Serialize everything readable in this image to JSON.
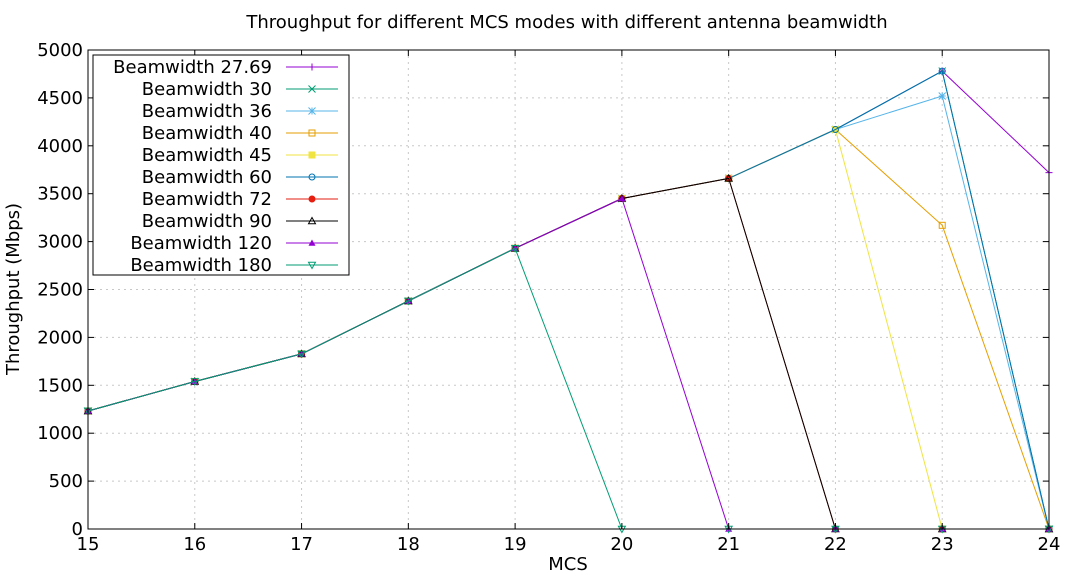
{
  "chart_data": {
    "type": "line",
    "title": "Throughput for different MCS modes with different antenna beamwidth",
    "xlabel": "MCS",
    "ylabel": "Throughput (Mbps)",
    "xlim": [
      15,
      24
    ],
    "ylim": [
      0,
      5000
    ],
    "xticks": [
      15,
      16,
      17,
      18,
      19,
      20,
      21,
      22,
      23,
      24
    ],
    "yticks": [
      0,
      500,
      1000,
      1500,
      2000,
      2500,
      3000,
      3500,
      4000,
      4500,
      5000
    ],
    "grid": true,
    "legend_position": "top-left",
    "x": [
      15,
      16,
      17,
      18,
      19,
      20,
      21,
      22,
      23,
      24
    ],
    "series": [
      {
        "name": "Beamwidth 27.69",
        "color": "#9400d3",
        "marker": "plus",
        "values": [
          1232,
          1540,
          1828,
          2380,
          2930,
          3450,
          3660,
          4170,
          4780,
          3720
        ]
      },
      {
        "name": "Beamwidth 30",
        "color": "#009e73",
        "marker": "cross",
        "values": [
          1232,
          1540,
          1828,
          2380,
          2930,
          3450,
          3660,
          4170,
          4780,
          0
        ]
      },
      {
        "name": "Beamwidth 36",
        "color": "#56b4e9",
        "marker": "star",
        "values": [
          1232,
          1540,
          1828,
          2380,
          2930,
          3450,
          3660,
          4170,
          4520,
          0
        ]
      },
      {
        "name": "Beamwidth 40",
        "color": "#e69f00",
        "marker": "square-open",
        "values": [
          1232,
          1540,
          1828,
          2380,
          2930,
          3450,
          3660,
          4170,
          3170,
          0
        ]
      },
      {
        "name": "Beamwidth 45",
        "color": "#f0e442",
        "marker": "square-filled",
        "values": [
          1232,
          1540,
          1828,
          2380,
          2930,
          3450,
          3660,
          4170,
          0,
          0
        ]
      },
      {
        "name": "Beamwidth 60",
        "color": "#0072b2",
        "marker": "circle-open",
        "values": [
          1232,
          1540,
          1828,
          2380,
          2930,
          3450,
          3660,
          4170,
          4780,
          0
        ]
      },
      {
        "name": "Beamwidth 72",
        "color": "#e51e10",
        "marker": "circle-filled",
        "values": [
          1232,
          1540,
          1828,
          2380,
          2930,
          3450,
          3660,
          0,
          0,
          0
        ]
      },
      {
        "name": "Beamwidth 90",
        "color": "#000000",
        "marker": "triangle-open",
        "values": [
          1232,
          1540,
          1828,
          2380,
          2930,
          3450,
          3660,
          0,
          0,
          0
        ]
      },
      {
        "name": "Beamwidth 120",
        "color": "#9400d3",
        "marker": "triangle-filled",
        "values": [
          1232,
          1540,
          1828,
          2380,
          2930,
          3450,
          0,
          0,
          0,
          0
        ]
      },
      {
        "name": "Beamwidth 180",
        "color": "#009e73",
        "marker": "triangle-down-open",
        "values": [
          1232,
          1540,
          1828,
          2380,
          2930,
          0,
          0,
          0,
          0,
          0
        ]
      }
    ]
  }
}
